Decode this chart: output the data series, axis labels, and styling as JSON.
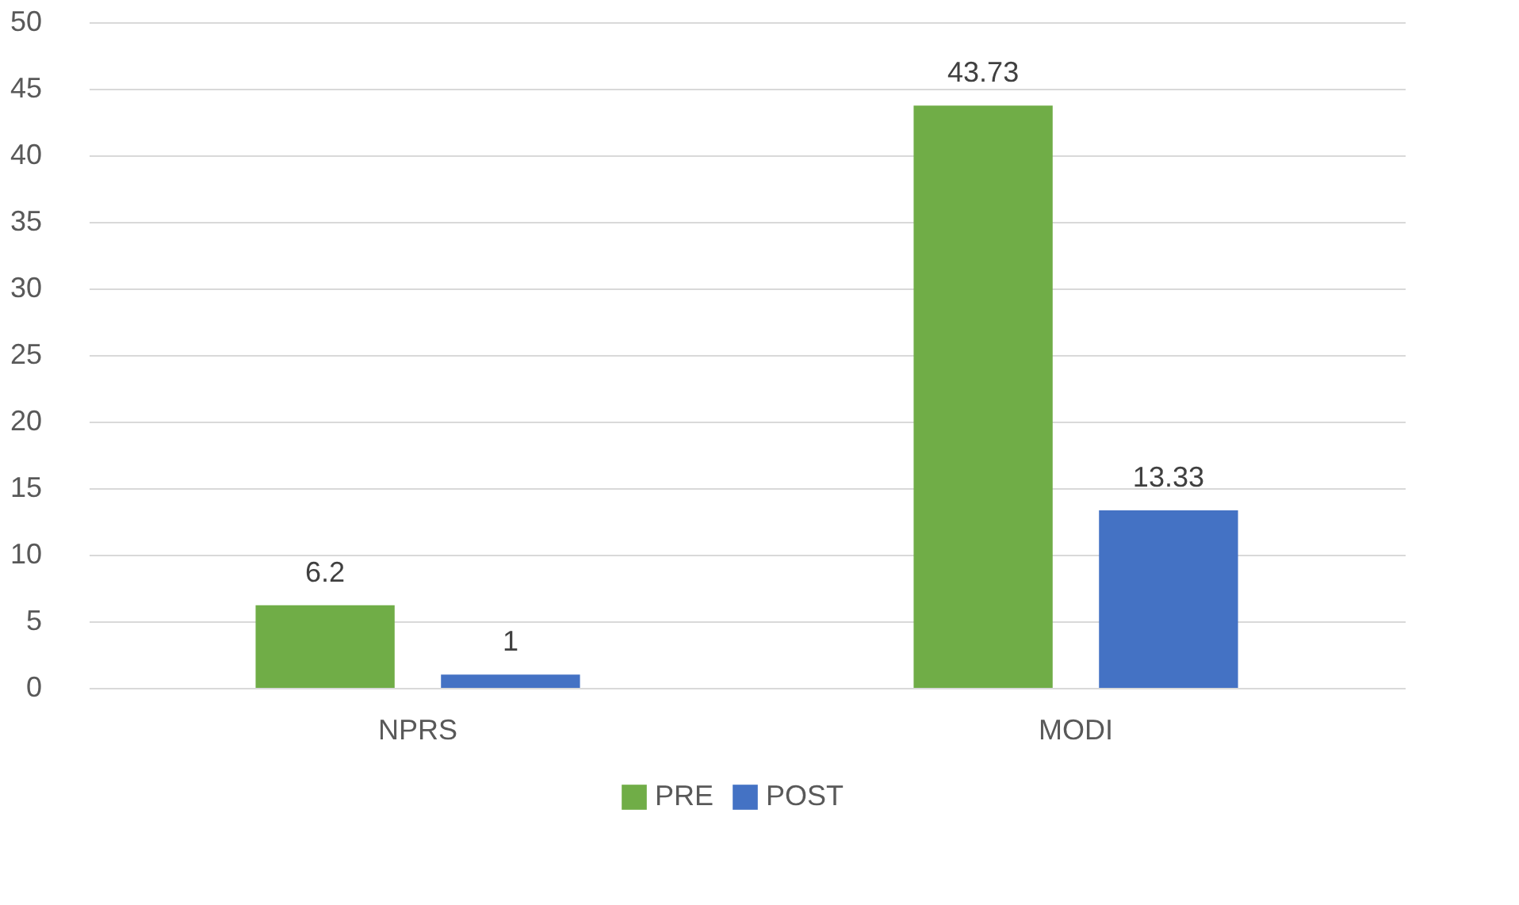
{
  "chart_data": {
    "type": "bar",
    "categories": [
      "NPRS",
      "MODI"
    ],
    "series": [
      {
        "name": "PRE",
        "color": "#70ad47",
        "values": [
          6.2,
          43.73
        ]
      },
      {
        "name": "POST",
        "color": "#4472c4",
        "values": [
          1,
          13.33
        ]
      }
    ],
    "ylim": [
      0,
      50
    ],
    "yticks": [
      0,
      5,
      10,
      15,
      20,
      25,
      30,
      35,
      40,
      45,
      50
    ],
    "grid": "y",
    "legend": "bottom",
    "data_labels": true
  }
}
